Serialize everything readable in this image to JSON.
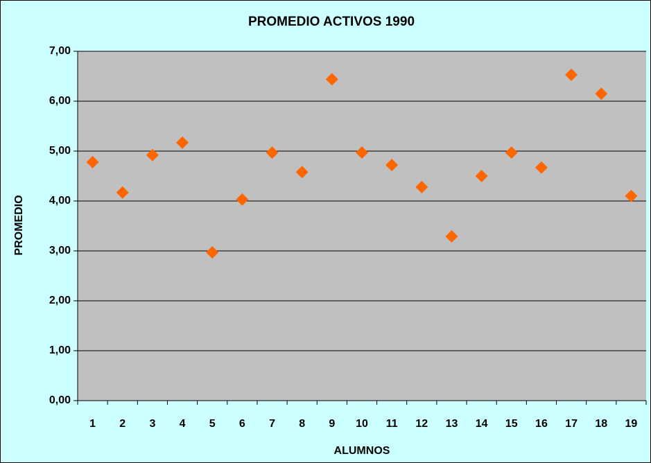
{
  "chart_data": {
    "type": "line",
    "title": "PROMEDIO ACTIVOS 1990",
    "x_label": "ALUMNOS",
    "y_label": "PROMEDIO",
    "categories": [
      "1",
      "2",
      "3",
      "4",
      "5",
      "6",
      "7",
      "8",
      "9",
      "10",
      "11",
      "12",
      "13",
      "14",
      "15",
      "16",
      "17",
      "18",
      "19"
    ],
    "series": [
      {
        "name": "PROMEDIO",
        "color": "#ff6600",
        "values": [
          4.78,
          4.17,
          4.92,
          5.17,
          2.97,
          4.03,
          4.97,
          4.58,
          6.44,
          4.97,
          4.72,
          4.28,
          3.29,
          4.5,
          4.97,
          4.67,
          6.53,
          6.15,
          4.1
        ]
      }
    ],
    "ylim": [
      0,
      7
    ],
    "yticks": [
      {
        "value": 0,
        "label": "0,00"
      },
      {
        "value": 1,
        "label": "1,00"
      },
      {
        "value": 2,
        "label": "2,00"
      },
      {
        "value": 3,
        "label": "3,00"
      },
      {
        "value": 4,
        "label": "4,00"
      },
      {
        "value": 5,
        "label": "5,00"
      },
      {
        "value": 6,
        "label": "6,00"
      },
      {
        "value": 7,
        "label": "7,00"
      }
    ],
    "grid": true,
    "legend": false
  }
}
